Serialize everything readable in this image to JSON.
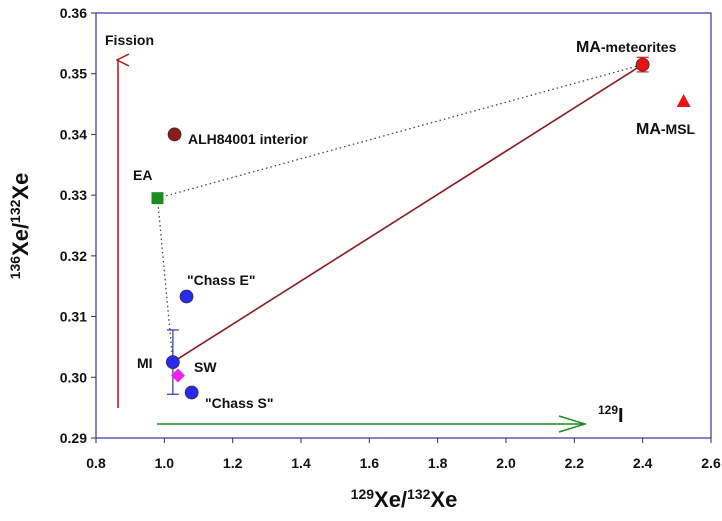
{
  "chart_data": {
    "type": "scatter",
    "title": "",
    "xlabel": {
      "sup": "129",
      "base": "Xe/",
      "sup2": "132",
      "base2": "Xe"
    },
    "ylabel": {
      "sup": "136",
      "base": "Xe/",
      "sup2": "132",
      "base2": "Xe"
    },
    "xlim": [
      0.8,
      2.6
    ],
    "ylim": [
      0.29,
      0.36
    ],
    "x_ticks": [
      "0.8",
      "1.0",
      "1.2",
      "1.4",
      "1.6",
      "1.8",
      "2.0",
      "2.2",
      "2.4",
      "2.6"
    ],
    "y_ticks": [
      "0.29",
      "0.30",
      "0.31",
      "0.32",
      "0.33",
      "0.34",
      "0.35",
      "0.36"
    ],
    "grid": false,
    "points": [
      {
        "label": "MA-meteorites",
        "label_bold": "MA",
        "label_rest": "-meteorites",
        "x": 2.4,
        "y": 0.3515,
        "marker": "circle",
        "color": "#ee1111",
        "yerr": 0.0012,
        "xerr": 0.02
      },
      {
        "label": "MA-MSL",
        "label_bold": "MA",
        "label_rest": "-MSL",
        "x": 2.52,
        "y": 0.3455,
        "marker": "triangle",
        "color": "#ee1111"
      },
      {
        "label": "ALH84001 interior",
        "x": 1.03,
        "y": 0.34,
        "marker": "circle",
        "color": "#8b1a1a"
      },
      {
        "label": "EA",
        "x": 0.98,
        "y": 0.3295,
        "marker": "square",
        "color": "#1e8b22"
      },
      {
        "label": "\"Chass E\"",
        "x": 1.065,
        "y": 0.3133,
        "marker": "circle",
        "color": "#2a2aee"
      },
      {
        "label": "MI",
        "x": 1.025,
        "y": 0.3025,
        "marker": "circle",
        "color": "#2a2aee",
        "yerr": 0.0053
      },
      {
        "label": "SW",
        "x": 1.04,
        "y": 0.3003,
        "marker": "diamond",
        "color": "#ee22ee"
      },
      {
        "label": "\"Chass S\"",
        "x": 1.08,
        "y": 0.2975,
        "marker": "circle",
        "color": "#2a2aee"
      }
    ],
    "lines": [
      {
        "name": "MI-MA mixing",
        "style": "solid",
        "color": "#8b1a1a",
        "x": [
          1.025,
          2.4
        ],
        "y": [
          0.3025,
          0.3515
        ]
      },
      {
        "name": "EA-MA",
        "style": "dotted",
        "color": "#444444",
        "x": [
          0.98,
          2.4
        ],
        "y": [
          0.3295,
          0.3515
        ]
      },
      {
        "name": "EA-MI",
        "style": "dotted",
        "color": "#444444",
        "x": [
          0.98,
          1.025
        ],
        "y": [
          0.3295,
          0.3025
        ]
      }
    ],
    "annotations": {
      "fission": {
        "text": "Fission",
        "color": "#b22222"
      },
      "iodine": {
        "sup": "129",
        "base": "I",
        "color": "#1e8b22"
      }
    }
  }
}
